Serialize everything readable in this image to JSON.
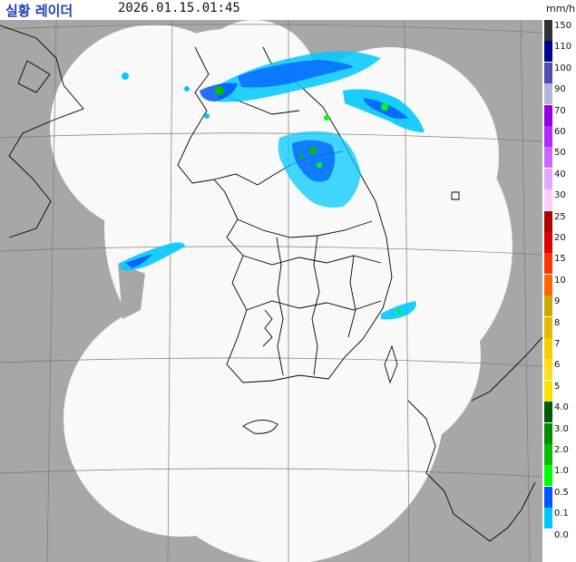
{
  "header": {
    "title": "실황 레이더",
    "timestamp": "2026.01.15.01:45",
    "unit": "mm/h"
  },
  "legend": {
    "entries": [
      {
        "label": "150",
        "color": "#333333"
      },
      {
        "label": "110",
        "color": "#000390"
      },
      {
        "label": "100",
        "color": "#4c4eb1"
      },
      {
        "label": "90",
        "color": "#b3b4de"
      },
      {
        "label": "70",
        "color": "#9300e4"
      },
      {
        "label": "60",
        "color": "#b329ff"
      },
      {
        "label": "50",
        "color": "#c969ff"
      },
      {
        "label": "40",
        "color": "#e0a9ff"
      },
      {
        "label": "30",
        "color": "#ffccff"
      },
      {
        "label": "25",
        "color": "#b40000"
      },
      {
        "label": "20",
        "color": "#e00000"
      },
      {
        "label": "15",
        "color": "#ff3300"
      },
      {
        "label": "10",
        "color": "#ff6600"
      },
      {
        "label": "9",
        "color": "#ccaa00"
      },
      {
        "label": "8",
        "color": "#e0b900"
      },
      {
        "label": "7",
        "color": "#f9cd00"
      },
      {
        "label": "6",
        "color": "#ffdc1f"
      },
      {
        "label": "5",
        "color": "#ffe100"
      },
      {
        "label": "4.0",
        "color": "#005a00"
      },
      {
        "label": "3.0",
        "color": "#008c00"
      },
      {
        "label": "2.0",
        "color": "#00be00"
      },
      {
        "label": "1.0",
        "color": "#00ff00"
      },
      {
        "label": "0.5",
        "color": "#0055ff"
      },
      {
        "label": "0.1",
        "color": "#00c8ff"
      },
      {
        "label": "0.0",
        "color": "#ffffff"
      }
    ]
  },
  "colors": {
    "outside": "#a7a7a7",
    "coverage": "#f9f9f9",
    "grid": "#7a7a7a"
  }
}
